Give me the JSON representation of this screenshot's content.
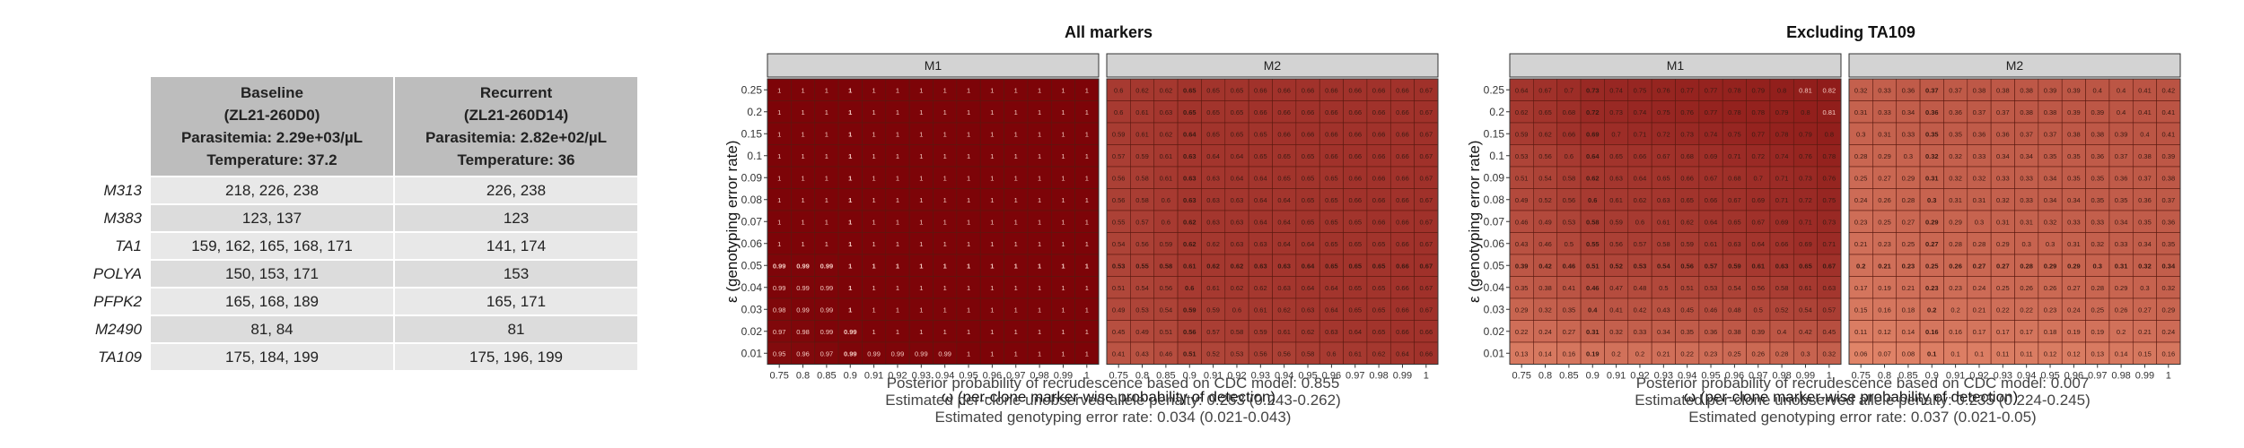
{
  "table": {
    "headers": [
      {
        "name": "Baseline",
        "id": "(ZL21-260D0)",
        "parasitemia": "Parasitemia: 2.29e+03/µL",
        "temperature": "Temperature: 37.2"
      },
      {
        "name": "Recurrent",
        "id": "(ZL21-260D14)",
        "parasitemia": "Parasitemia: 2.82e+02/µL",
        "temperature": "Temperature: 36"
      }
    ],
    "rows": [
      {
        "marker": "M313",
        "baseline": "218, 226, 238",
        "recurrent": "226, 238"
      },
      {
        "marker": "M383",
        "baseline": "123, 137",
        "recurrent": "123"
      },
      {
        "marker": "TA1",
        "baseline": "159, 162, 165, 168, 171",
        "recurrent": "141, 174"
      },
      {
        "marker": "POLYA",
        "baseline": "150, 153, 171",
        "recurrent": "153"
      },
      {
        "marker": "PFPK2",
        "baseline": "165, 168, 189",
        "recurrent": "165, 171"
      },
      {
        "marker": "M2490",
        "baseline": "81, 84",
        "recurrent": "81"
      },
      {
        "marker": "TA109",
        "baseline": "175, 184, 199",
        "recurrent": "175, 196, 199"
      }
    ]
  },
  "chart_data": [
    {
      "type": "heatmap",
      "title": "All markers",
      "facets": [
        "M1",
        "M2"
      ],
      "xlabel": "ω (per-clone marker-wise probability of detection)",
      "ylabel": "ε (genotyping error rate)",
      "x": [
        "0.75",
        "0.8",
        "0.85",
        "0.9",
        "0.91",
        "0.92",
        "0.93",
        "0.94",
        "0.95",
        "0.96",
        "0.97",
        "0.98",
        "0.99",
        "1"
      ],
      "y": [
        "0.25",
        "0.2",
        "0.15",
        "0.1",
        "0.09",
        "0.08",
        "0.07",
        "0.06",
        "0.05",
        "0.04",
        "0.03",
        "0.02",
        "0.01"
      ],
      "bold_x": "0.9",
      "bold_y": "0.05",
      "series": [
        {
          "facet": "M1",
          "values": [
            [
              1,
              1,
              1,
              1,
              1,
              1,
              1,
              1,
              1,
              1,
              1,
              1,
              1,
              1
            ],
            [
              1,
              1,
              1,
              1,
              1,
              1,
              1,
              1,
              1,
              1,
              1,
              1,
              1,
              1
            ],
            [
              1,
              1,
              1,
              1,
              1,
              1,
              1,
              1,
              1,
              1,
              1,
              1,
              1,
              1
            ],
            [
              1,
              1,
              1,
              1,
              1,
              1,
              1,
              1,
              1,
              1,
              1,
              1,
              1,
              1
            ],
            [
              1,
              1,
              1,
              1,
              1,
              1,
              1,
              1,
              1,
              1,
              1,
              1,
              1,
              1
            ],
            [
              1,
              1,
              1,
              1,
              1,
              1,
              1,
              1,
              1,
              1,
              1,
              1,
              1,
              1
            ],
            [
              1,
              1,
              1,
              1,
              1,
              1,
              1,
              1,
              1,
              1,
              1,
              1,
              1,
              1
            ],
            [
              1,
              1,
              1,
              1,
              1,
              1,
              1,
              1,
              1,
              1,
              1,
              1,
              1,
              1
            ],
            [
              0.99,
              0.99,
              0.99,
              1,
              1,
              1,
              1,
              1,
              1,
              1,
              1,
              1,
              1,
              1
            ],
            [
              0.99,
              0.99,
              0.99,
              1,
              1,
              1,
              1,
              1,
              1,
              1,
              1,
              1,
              1,
              1
            ],
            [
              0.98,
              0.99,
              0.99,
              1,
              1,
              1,
              1,
              1,
              1,
              1,
              1,
              1,
              1,
              1
            ],
            [
              0.97,
              0.98,
              0.99,
              0.99,
              1,
              1,
              1,
              1,
              1,
              1,
              1,
              1,
              1,
              1
            ],
            [
              0.95,
              0.96,
              0.97,
              0.99,
              0.99,
              0.99,
              0.99,
              0.99,
              1,
              1,
              1,
              1,
              1,
              1
            ]
          ]
        },
        {
          "facet": "M2",
          "values": [
            [
              0.6,
              0.62,
              0.62,
              0.65,
              0.65,
              0.65,
              0.66,
              0.66,
              0.66,
              0.66,
              0.66,
              0.66,
              0.66,
              0.67
            ],
            [
              0.6,
              0.61,
              0.63,
              0.65,
              0.65,
              0.65,
              0.66,
              0.66,
              0.66,
              0.66,
              0.66,
              0.66,
              0.66,
              0.67
            ],
            [
              0.59,
              0.61,
              0.62,
              0.64,
              0.65,
              0.65,
              0.65,
              0.66,
              0.66,
              0.66,
              0.66,
              0.66,
              0.66,
              0.67
            ],
            [
              0.57,
              0.59,
              0.61,
              0.63,
              0.64,
              0.64,
              0.65,
              0.65,
              0.65,
              0.66,
              0.66,
              0.66,
              0.66,
              0.67
            ],
            [
              0.56,
              0.58,
              0.61,
              0.63,
              0.63,
              0.64,
              0.64,
              0.65,
              0.65,
              0.65,
              0.66,
              0.66,
              0.66,
              0.67
            ],
            [
              0.56,
              0.58,
              0.6,
              0.63,
              0.63,
              0.63,
              0.64,
              0.64,
              0.65,
              0.65,
              0.66,
              0.66,
              0.66,
              0.67
            ],
            [
              0.55,
              0.57,
              0.6,
              0.62,
              0.63,
              0.63,
              0.64,
              0.64,
              0.65,
              0.65,
              0.65,
              0.66,
              0.66,
              0.67
            ],
            [
              0.54,
              0.56,
              0.59,
              0.62,
              0.62,
              0.63,
              0.63,
              0.64,
              0.64,
              0.65,
              0.65,
              0.65,
              0.66,
              0.67
            ],
            [
              0.53,
              0.55,
              0.58,
              0.61,
              0.62,
              0.62,
              0.63,
              0.63,
              0.64,
              0.65,
              0.65,
              0.65,
              0.66,
              0.67
            ],
            [
              0.51,
              0.54,
              0.56,
              0.6,
              0.61,
              0.62,
              0.62,
              0.63,
              0.64,
              0.64,
              0.65,
              0.65,
              0.66,
              0.67
            ],
            [
              0.49,
              0.53,
              0.54,
              0.59,
              0.59,
              0.6,
              0.61,
              0.62,
              0.63,
              0.64,
              0.65,
              0.65,
              0.66,
              0.67
            ],
            [
              0.45,
              0.49,
              0.51,
              0.56,
              0.57,
              0.58,
              0.59,
              0.61,
              0.62,
              0.63,
              0.64,
              0.65,
              0.66,
              0.66
            ],
            [
              0.41,
              0.43,
              0.46,
              0.51,
              0.52,
              0.53,
              0.56,
              0.56,
              0.58,
              0.6,
              0.61,
              0.62,
              0.64,
              0.66
            ]
          ]
        }
      ],
      "caption": [
        "Posterior probability of recrudescence based on CDC model: 0.855",
        "Estimated per-clone unobserved allele penalty: 0.253 (0.243-0.262)",
        "Estimated genotyping error rate: 0.034 (0.021-0.043)"
      ]
    },
    {
      "type": "heatmap",
      "title": "Excluding TA109",
      "facets": [
        "M1",
        "M2"
      ],
      "xlabel": "ω (per-clone marker-wise probability of detection)",
      "ylabel": "ε (genotyping error rate)",
      "x": [
        "0.75",
        "0.8",
        "0.85",
        "0.9",
        "0.91",
        "0.92",
        "0.93",
        "0.94",
        "0.95",
        "0.96",
        "0.97",
        "0.98",
        "0.99",
        "1"
      ],
      "y": [
        "0.25",
        "0.2",
        "0.15",
        "0.1",
        "0.09",
        "0.08",
        "0.07",
        "0.06",
        "0.05",
        "0.04",
        "0.03",
        "0.02",
        "0.01"
      ],
      "bold_x": "0.9",
      "bold_y": "0.05",
      "series": [
        {
          "facet": "M1",
          "values": [
            [
              0.64,
              0.67,
              0.7,
              0.73,
              0.74,
              0.75,
              0.76,
              0.77,
              0.77,
              0.78,
              0.79,
              0.8,
              0.81,
              0.82
            ],
            [
              0.62,
              0.65,
              0.68,
              0.72,
              0.73,
              0.74,
              0.75,
              0.76,
              0.77,
              0.78,
              0.78,
              0.79,
              0.8,
              0.81
            ],
            [
              0.59,
              0.62,
              0.66,
              0.69,
              0.7,
              0.71,
              0.72,
              0.73,
              0.74,
              0.75,
              0.77,
              0.78,
              0.79,
              0.8
            ],
            [
              0.53,
              0.56,
              0.6,
              0.64,
              0.65,
              0.66,
              0.67,
              0.68,
              0.69,
              0.71,
              0.72,
              0.74,
              0.76,
              0.78
            ],
            [
              0.51,
              0.54,
              0.58,
              0.62,
              0.63,
              0.64,
              0.65,
              0.66,
              0.67,
              0.68,
              0.7,
              0.71,
              0.73,
              0.76
            ],
            [
              0.49,
              0.52,
              0.56,
              0.6,
              0.61,
              0.62,
              0.63,
              0.65,
              0.66,
              0.67,
              0.69,
              0.71,
              0.72,
              0.75
            ],
            [
              0.46,
              0.49,
              0.53,
              0.58,
              0.59,
              0.6,
              0.61,
              0.62,
              0.64,
              0.65,
              0.67,
              0.69,
              0.71,
              0.73
            ],
            [
              0.43,
              0.46,
              0.5,
              0.55,
              0.56,
              0.57,
              0.58,
              0.59,
              0.61,
              0.63,
              0.64,
              0.66,
              0.69,
              0.71
            ],
            [
              0.39,
              0.42,
              0.46,
              0.51,
              0.52,
              0.53,
              0.54,
              0.56,
              0.57,
              0.59,
              0.61,
              0.63,
              0.65,
              0.67
            ],
            [
              0.35,
              0.38,
              0.41,
              0.46,
              0.47,
              0.48,
              0.5,
              0.51,
              0.53,
              0.54,
              0.56,
              0.58,
              0.61,
              0.63
            ],
            [
              0.29,
              0.32,
              0.35,
              0.4,
              0.41,
              0.42,
              0.43,
              0.45,
              0.46,
              0.48,
              0.5,
              0.52,
              0.54,
              0.57
            ],
            [
              0.22,
              0.24,
              0.27,
              0.31,
              0.32,
              0.33,
              0.34,
              0.35,
              0.36,
              0.38,
              0.39,
              0.4,
              0.42,
              0.45
            ],
            [
              0.13,
              0.14,
              0.16,
              0.19,
              0.2,
              0.2,
              0.21,
              0.22,
              0.23,
              0.25,
              0.26,
              0.28,
              0.3,
              0.32
            ]
          ]
        },
        {
          "facet": "M2",
          "values": [
            [
              0.32,
              0.33,
              0.36,
              0.37,
              0.37,
              0.38,
              0.38,
              0.38,
              0.39,
              0.39,
              0.4,
              0.4,
              0.41,
              0.42
            ],
            [
              0.31,
              0.33,
              0.34,
              0.36,
              0.36,
              0.37,
              0.37,
              0.38,
              0.38,
              0.39,
              0.39,
              0.4,
              0.41,
              0.41
            ],
            [
              0.3,
              0.31,
              0.33,
              0.35,
              0.35,
              0.36,
              0.36,
              0.37,
              0.37,
              0.38,
              0.38,
              0.39,
              0.4,
              0.41
            ],
            [
              0.28,
              0.29,
              0.3,
              0.32,
              0.32,
              0.33,
              0.34,
              0.34,
              0.35,
              0.35,
              0.36,
              0.37,
              0.38,
              0.39
            ],
            [
              0.25,
              0.27,
              0.29,
              0.31,
              0.32,
              0.32,
              0.33,
              0.33,
              0.34,
              0.35,
              0.35,
              0.36,
              0.37,
              0.38
            ],
            [
              0.24,
              0.26,
              0.28,
              0.3,
              0.31,
              0.31,
              0.32,
              0.33,
              0.34,
              0.34,
              0.35,
              0.35,
              0.36,
              0.37
            ],
            [
              0.23,
              0.25,
              0.27,
              0.29,
              0.29,
              0.3,
              0.31,
              0.31,
              0.32,
              0.33,
              0.33,
              0.34,
              0.35,
              0.36
            ],
            [
              0.21,
              0.23,
              0.25,
              0.27,
              0.28,
              0.28,
              0.29,
              0.3,
              0.3,
              0.31,
              0.32,
              0.33,
              0.34,
              0.35
            ],
            [
              0.2,
              0.21,
              0.23,
              0.25,
              0.26,
              0.27,
              0.27,
              0.28,
              0.29,
              0.29,
              0.3,
              0.31,
              0.32,
              0.34
            ],
            [
              0.17,
              0.19,
              0.21,
              0.23,
              0.23,
              0.24,
              0.25,
              0.26,
              0.26,
              0.27,
              0.28,
              0.29,
              0.3,
              0.32
            ],
            [
              0.15,
              0.16,
              0.18,
              0.2,
              0.2,
              0.21,
              0.22,
              0.22,
              0.23,
              0.24,
              0.25,
              0.26,
              0.27,
              0.29
            ],
            [
              0.11,
              0.12,
              0.14,
              0.16,
              0.16,
              0.17,
              0.17,
              0.17,
              0.18,
              0.19,
              0.19,
              0.2,
              0.21,
              0.24
            ],
            [
              0.06,
              0.07,
              0.08,
              0.1,
              0.1,
              0.1,
              0.11,
              0.11,
              0.12,
              0.12,
              0.13,
              0.14,
              0.15,
              0.16
            ]
          ]
        }
      ],
      "caption": [
        "Posterior probability of recrudescence based on CDC model: 0.007",
        "Estimated per-clone unobserved allele penalty: 0.235 (0.224-0.245)",
        "Estimated genotyping error rate: 0.037 (0.021-0.05)"
      ]
    }
  ]
}
